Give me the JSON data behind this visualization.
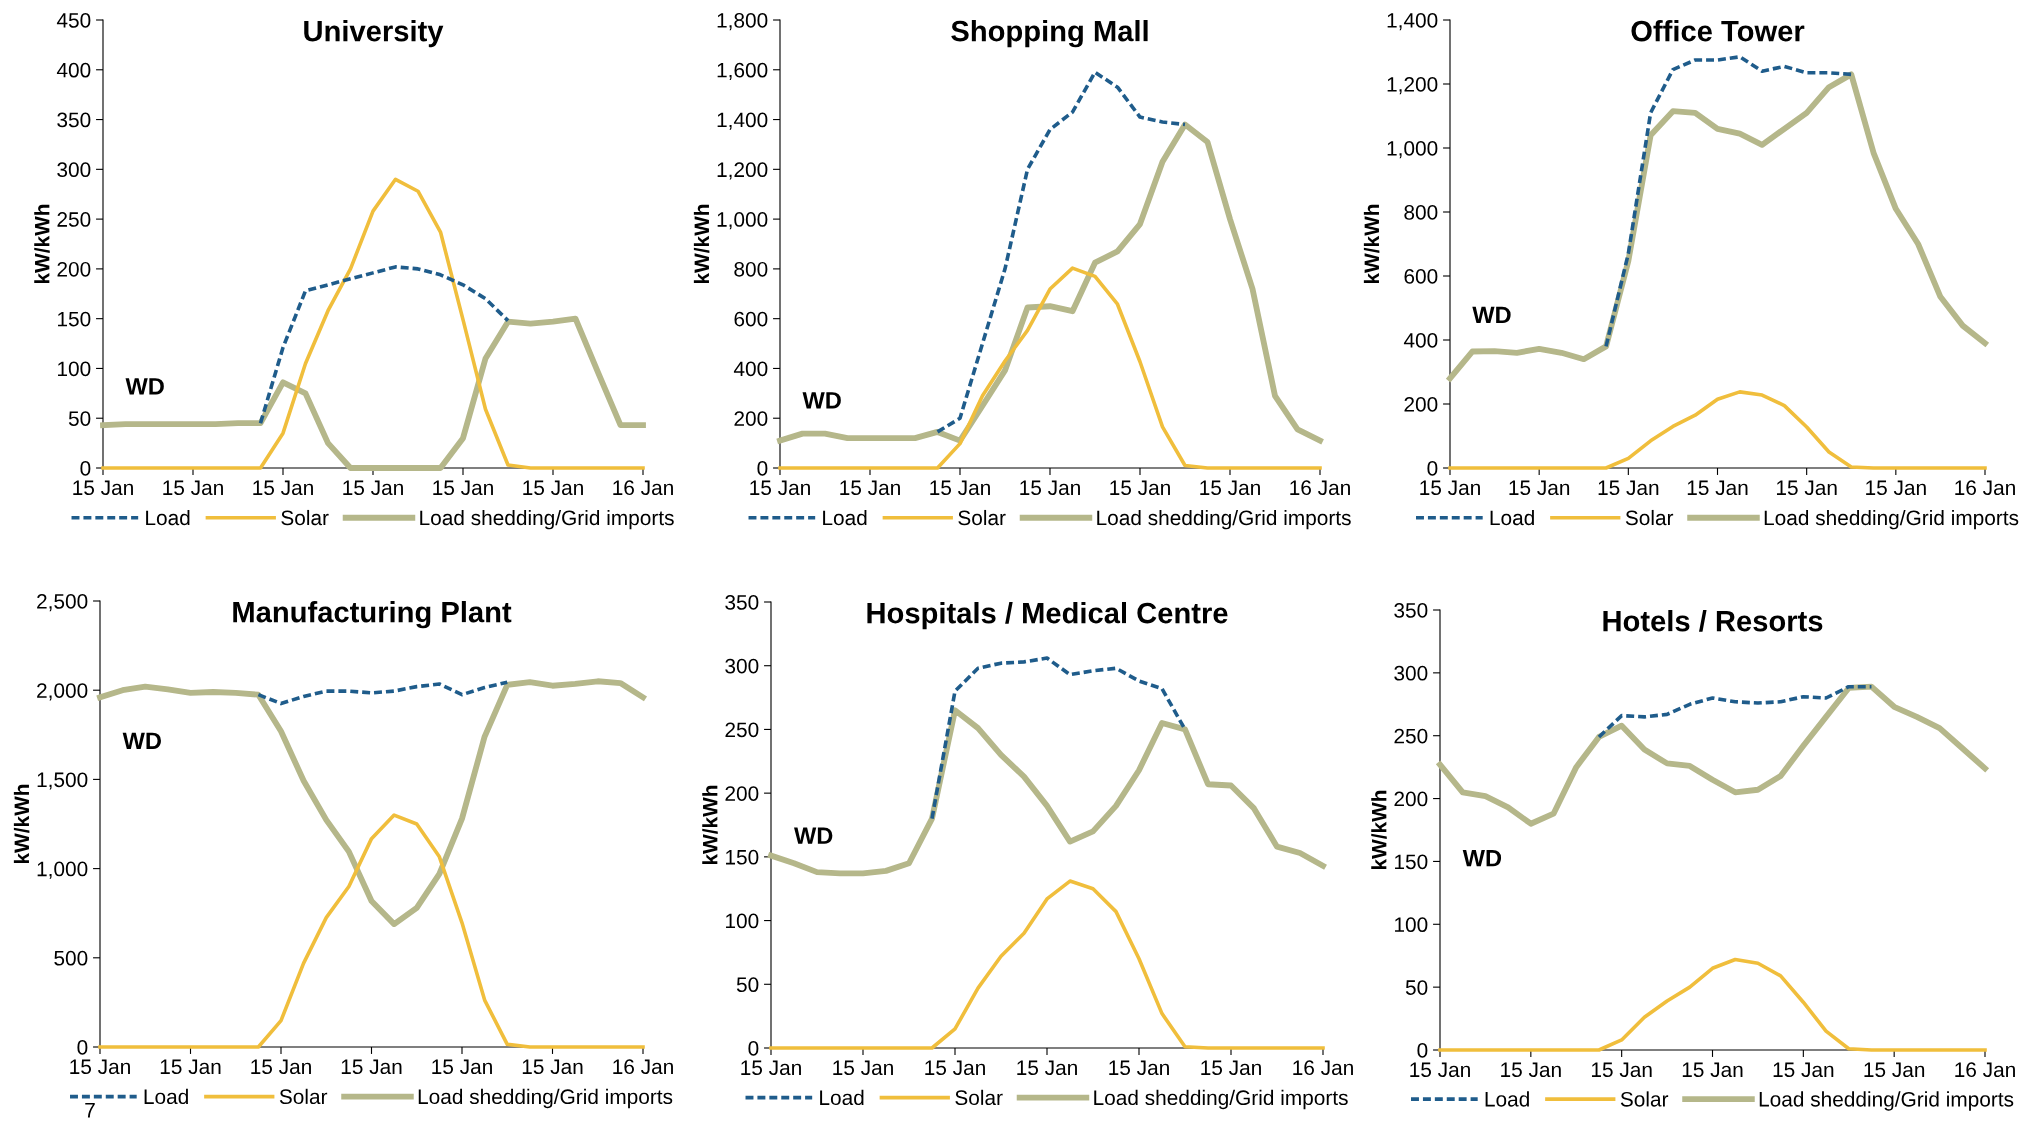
{
  "chart_data": [
    {
      "type": "line",
      "title": "University",
      "ylabel": "kW/kWh",
      "annotations": [
        "WD"
      ],
      "legend": "bottom",
      "grid": false,
      "marker": "none",
      "categories": [
        "15 Jan",
        null,
        null,
        null,
        "15 Jan",
        null,
        null,
        null,
        "15 Jan",
        null,
        null,
        null,
        "15 Jan",
        null,
        null,
        null,
        "15 Jan",
        null,
        null,
        null,
        "15 Jan",
        null,
        null,
        null,
        "16 Jan"
      ],
      "ylim": [
        0,
        450
      ],
      "yticks": [
        0,
        50,
        100,
        150,
        200,
        250,
        300,
        350,
        400,
        450
      ],
      "series": [
        {
          "name": "Load",
          "color": "#1f5c8b",
          "line_style": "dashed",
          "values": [
            null,
            null,
            null,
            null,
            null,
            null,
            null,
            45,
            121,
            178,
            184,
            190,
            196,
            202,
            200,
            194,
            184,
            170,
            148,
            null,
            null,
            null,
            null,
            null,
            null
          ]
        },
        {
          "name": "Solar",
          "color": "#f0be3c",
          "line_style": "solid",
          "values": [
            0,
            0,
            0,
            0,
            0,
            0,
            0,
            0,
            35,
            105,
            158,
            200,
            258,
            290,
            278,
            237,
            149,
            59,
            3,
            0,
            0,
            0,
            0,
            0,
            0
          ]
        },
        {
          "name": "Load shedding/Grid imports",
          "color": "#b5b78a",
          "line_style": "solid",
          "values": [
            43,
            44,
            44,
            44,
            44,
            44,
            45,
            45,
            86,
            75,
            25,
            0,
            0,
            0,
            0,
            0,
            30,
            110,
            147,
            145,
            147,
            150,
            96,
            43,
            43
          ]
        }
      ]
    },
    {
      "type": "line",
      "title": "Shopping Mall",
      "ylabel": "kW/kWh",
      "annotations": [
        "WD"
      ],
      "legend": "bottom",
      "grid": false,
      "marker": "none",
      "categories": [
        "15 Jan",
        null,
        null,
        null,
        "15 Jan",
        null,
        null,
        null,
        "15 Jan",
        null,
        null,
        null,
        "15 Jan",
        null,
        null,
        null,
        "15 Jan",
        null,
        null,
        null,
        "15 Jan",
        null,
        null,
        null,
        "16 Jan"
      ],
      "ylim": [
        0,
        1800
      ],
      "yticks": [
        0,
        200,
        400,
        600,
        800,
        {
          "value": 1000,
          "label": "1,000"
        },
        {
          "value": 1200,
          "label": "1,200"
        },
        {
          "value": 1400,
          "label": "1,400"
        },
        {
          "value": 1600,
          "label": "1,600"
        },
        {
          "value": 1800,
          "label": "1,800"
        }
      ],
      "series": [
        {
          "name": "Load",
          "color": "#1f5c8b",
          "line_style": "dashed",
          "values": [
            null,
            null,
            null,
            null,
            null,
            null,
            null,
            145,
            200,
            500,
            800,
            1200,
            1360,
            1430,
            1590,
            1530,
            1410,
            1390,
            1380,
            null,
            null,
            null,
            null,
            null,
            null
          ]
        },
        {
          "name": "Solar",
          "color": "#f0be3c",
          "line_style": "solid",
          "values": [
            0,
            0,
            0,
            0,
            0,
            0,
            0,
            0,
            98,
            290,
            430,
            553,
            719,
            803,
            770,
            658,
            427,
            165,
            10,
            0,
            0,
            0,
            0,
            0,
            0
          ]
        },
        {
          "name": "Load shedding/Grid imports",
          "color": "#b5b78a",
          "line_style": "solid",
          "values": [
            110,
            138,
            138,
            120,
            120,
            120,
            120,
            145,
            110,
            250,
            392,
            645,
            650,
            630,
            825,
            870,
            980,
            1230,
            1380,
            1310,
            1000,
            720,
            290,
            155,
            110
          ]
        }
      ]
    },
    {
      "type": "line",
      "title": "Office Tower",
      "ylabel": "kW/kWh",
      "annotations": [
        "WD"
      ],
      "legend": "bottom",
      "grid": false,
      "marker": "none",
      "categories": [
        "15 Jan",
        null,
        null,
        null,
        "15 Jan",
        null,
        null,
        null,
        "15 Jan",
        null,
        null,
        null,
        "15 Jan",
        null,
        null,
        null,
        "15 Jan",
        null,
        null,
        null,
        "15 Jan",
        null,
        null,
        null,
        "16 Jan"
      ],
      "ylim": [
        0,
        1400
      ],
      "yticks": [
        0,
        200,
        400,
        600,
        800,
        {
          "value": 1000,
          "label": "1,000"
        },
        {
          "value": 1200,
          "label": "1,200"
        },
        {
          "value": 1400,
          "label": "1,400"
        }
      ],
      "series": [
        {
          "name": "Load",
          "color": "#1f5c8b",
          "line_style": "dashed",
          "values": [
            null,
            null,
            null,
            null,
            null,
            null,
            null,
            380,
            670,
            1110,
            1245,
            1275,
            1275,
            1285,
            1240,
            1255,
            1235,
            1235,
            1230,
            null,
            null,
            null,
            null,
            null,
            null
          ]
        },
        {
          "name": "Solar",
          "color": "#f0be3c",
          "line_style": "solid",
          "values": [
            0,
            0,
            0,
            0,
            0,
            0,
            0,
            0,
            30,
            85,
            130,
            165,
            215,
            238,
            228,
            195,
            128,
            50,
            3,
            0,
            0,
            0,
            0,
            0,
            0
          ]
        },
        {
          "name": "Load shedding/Grid imports",
          "color": "#b5b78a",
          "line_style": "solid",
          "values": [
            280,
            364,
            365,
            360,
            372,
            360,
            340,
            380,
            647,
            1040,
            1115,
            1110,
            1060,
            1045,
            1010,
            1060,
            1110,
            1190,
            1230,
            985,
            810,
            700,
            535,
            445,
            390
          ]
        }
      ]
    },
    {
      "type": "line",
      "title": "Manufacturing Plant",
      "ylabel": "kW/kWh",
      "annotations": [
        "WD",
        "7"
      ],
      "legend": "bottom",
      "grid": false,
      "marker": "none",
      "categories": [
        "15 Jan",
        null,
        null,
        null,
        "15 Jan",
        null,
        null,
        null,
        "15 Jan",
        null,
        null,
        null,
        "15 Jan",
        null,
        null,
        null,
        "15 Jan",
        null,
        null,
        null,
        "15 Jan",
        null,
        null,
        null,
        "16 Jan"
      ],
      "ylim": [
        0,
        2500
      ],
      "yticks": [
        0,
        500,
        {
          "value": 1000,
          "label": "1,000"
        },
        {
          "value": 1500,
          "label": "1,500"
        },
        {
          "value": 2000,
          "label": "2,000"
        },
        {
          "value": 2500,
          "label": "2,500"
        }
      ],
      "series": [
        {
          "name": "Load",
          "color": "#1f5c8b",
          "line_style": "dashed",
          "values": [
            null,
            null,
            null,
            null,
            null,
            null,
            null,
            1975,
            1925,
            1965,
            1995,
            1995,
            1985,
            1995,
            2020,
            2035,
            1975,
            2015,
            2045,
            null,
            null,
            null,
            null,
            null,
            null
          ]
        },
        {
          "name": "Solar",
          "color": "#f0be3c",
          "line_style": "solid",
          "values": [
            0,
            0,
            0,
            0,
            0,
            0,
            0,
            0,
            148,
            470,
            725,
            900,
            1168,
            1300,
            1250,
            1066,
            696,
            263,
            15,
            0,
            0,
            0,
            0,
            0,
            0
          ]
        },
        {
          "name": "Load shedding/Grid imports",
          "color": "#b5b78a",
          "line_style": "solid",
          "values": [
            1960,
            2000,
            2020,
            2005,
            1985,
            1990,
            1985,
            1975,
            1770,
            1492,
            1273,
            1095,
            818,
            689,
            780,
            970,
            1280,
            1740,
            2030,
            2045,
            2025,
            2035,
            2050,
            2040,
            1960
          ]
        }
      ]
    },
    {
      "type": "line",
      "title": "Hospitals / Medical Centre",
      "ylabel": "kW/kWh",
      "annotations": [
        "WD"
      ],
      "legend": "bottom",
      "grid": false,
      "marker": "none",
      "categories": [
        "15 Jan",
        null,
        null,
        null,
        "15 Jan",
        null,
        null,
        null,
        "15 Jan",
        null,
        null,
        null,
        "15 Jan",
        null,
        null,
        null,
        "15 Jan",
        null,
        null,
        null,
        "15 Jan",
        null,
        null,
        null,
        "16 Jan"
      ],
      "ylim": [
        0,
        350
      ],
      "yticks": [
        0,
        50,
        100,
        150,
        200,
        250,
        300,
        350
      ],
      "series": [
        {
          "name": "Load",
          "color": "#1f5c8b",
          "line_style": "dashed",
          "values": [
            null,
            null,
            null,
            null,
            null,
            null,
            null,
            180,
            280,
            298,
            302,
            303,
            306,
            293,
            296,
            298,
            288,
            282,
            250,
            null,
            null,
            null,
            null,
            null,
            null
          ]
        },
        {
          "name": "Solar",
          "color": "#f0be3c",
          "line_style": "solid",
          "values": [
            0,
            0,
            0,
            0,
            0,
            0,
            0,
            0,
            15,
            47,
            72,
            90,
            117,
            131,
            125,
            107,
            70,
            27,
            1,
            0,
            0,
            0,
            0,
            0,
            0
          ]
        },
        {
          "name": "Load shedding/Grid imports",
          "color": "#b5b78a",
          "line_style": "solid",
          "values": [
            151,
            145,
            138,
            137,
            137,
            139,
            145,
            180,
            265,
            251,
            230,
            213,
            190,
            162,
            170,
            190,
            218,
            255,
            250,
            207,
            206,
            188,
            158,
            153,
            143
          ]
        }
      ]
    },
    {
      "type": "line",
      "title": "Hotels / Resorts",
      "ylabel": "kW/kWh",
      "annotations": [
        "WD"
      ],
      "legend": "bottom",
      "grid": false,
      "marker": "none",
      "categories": [
        "15 Jan",
        null,
        null,
        null,
        "15 Jan",
        null,
        null,
        null,
        "15 Jan",
        null,
        null,
        null,
        "15 Jan",
        null,
        null,
        null,
        "15 Jan",
        null,
        null,
        null,
        "15 Jan",
        null,
        null,
        null,
        "16 Jan"
      ],
      "ylim": [
        0,
        350
      ],
      "yticks": [
        0,
        50,
        100,
        150,
        200,
        250,
        300,
        350
      ],
      "series": [
        {
          "name": "Load",
          "color": "#1f5c8b",
          "line_style": "dashed",
          "values": [
            null,
            null,
            null,
            null,
            null,
            null,
            null,
            249,
            266,
            265,
            267,
            275,
            280,
            277,
            276,
            277,
            281,
            280,
            289,
            289,
            null,
            null,
            null,
            null,
            null
          ]
        },
        {
          "name": "Solar",
          "color": "#f0be3c",
          "line_style": "solid",
          "values": [
            0,
            0,
            0,
            0,
            0,
            0,
            0,
            0,
            8,
            26,
            39,
            50,
            65,
            72,
            69,
            59,
            38,
            15,
            1,
            0,
            0,
            0,
            0,
            0,
            0
          ]
        },
        {
          "name": "Load shedding/Grid imports",
          "color": "#b5b78a",
          "line_style": "solid",
          "values": [
            227,
            205,
            202,
            193,
            180,
            188,
            225,
            249,
            258,
            239,
            228,
            226,
            215,
            205,
            207,
            218,
            242,
            265,
            288,
            289,
            273,
            265,
            256,
            240,
            224
          ]
        }
      ]
    }
  ]
}
